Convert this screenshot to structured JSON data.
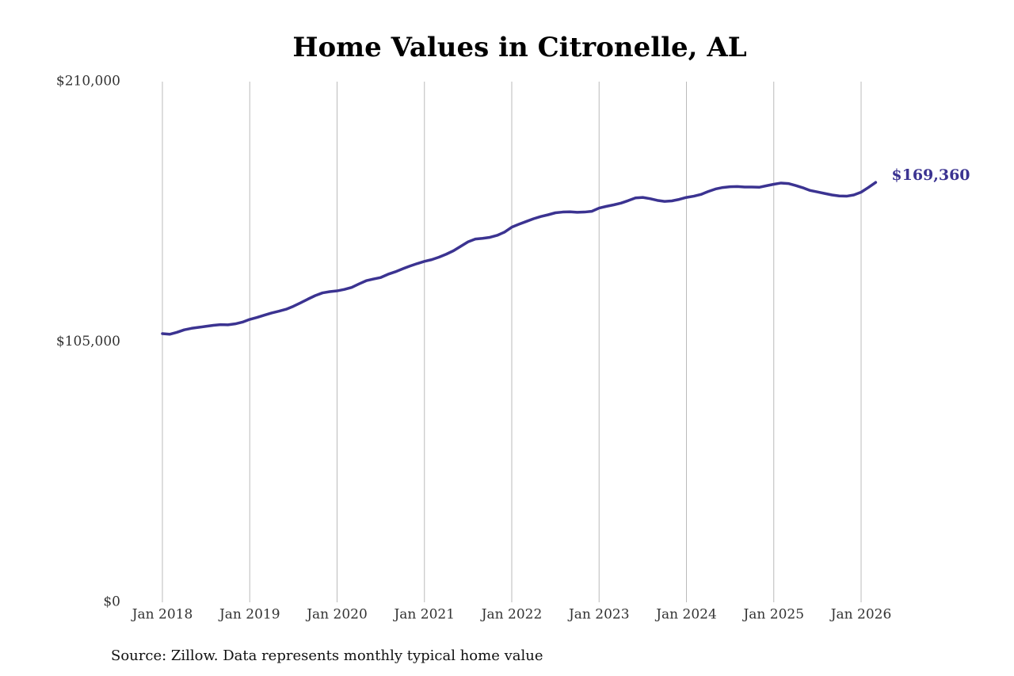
{
  "chart_data": {
    "type": "line",
    "title": "Home Values in Citronelle, AL",
    "source": "Source: Zillow. Data represents monthly typical home value",
    "x": [
      "2018-01",
      "2018-02",
      "2018-03",
      "2018-04",
      "2018-05",
      "2018-06",
      "2018-07",
      "2018-08",
      "2018-09",
      "2018-10",
      "2018-11",
      "2018-12",
      "2019-01",
      "2019-02",
      "2019-03",
      "2019-04",
      "2019-05",
      "2019-06",
      "2019-07",
      "2019-08",
      "2019-09",
      "2019-10",
      "2019-11",
      "2019-12",
      "2020-01",
      "2020-02",
      "2020-03",
      "2020-04",
      "2020-05",
      "2020-06",
      "2020-07",
      "2020-08",
      "2020-09",
      "2020-10",
      "2020-11",
      "2020-12",
      "2021-01",
      "2021-02",
      "2021-03",
      "2021-04",
      "2021-05",
      "2021-06",
      "2021-07",
      "2021-08",
      "2021-09",
      "2021-10",
      "2021-11",
      "2021-12",
      "2022-01",
      "2022-02",
      "2022-03",
      "2022-04",
      "2022-05",
      "2022-06",
      "2022-07",
      "2022-08",
      "2022-09",
      "2022-10",
      "2022-11",
      "2022-12",
      "2023-01",
      "2023-02",
      "2023-03",
      "2023-04",
      "2023-05",
      "2023-06",
      "2023-07",
      "2023-08",
      "2023-09",
      "2023-10",
      "2023-11",
      "2023-12",
      "2024-01",
      "2024-02",
      "2024-03",
      "2024-04",
      "2024-05",
      "2024-06",
      "2024-07",
      "2024-08",
      "2024-09",
      "2024-10",
      "2024-11",
      "2024-12",
      "2025-01",
      "2025-02",
      "2025-03",
      "2025-04",
      "2025-05",
      "2025-06",
      "2025-07",
      "2025-08",
      "2025-09",
      "2025-10",
      "2025-11",
      "2025-12",
      "2026-01",
      "2026-02",
      "2026-03"
    ],
    "series": [
      {
        "name": "Typical home value",
        "color": "#3b3391",
        "values": [
          108350,
          108100,
          108900,
          109900,
          110500,
          110900,
          111300,
          111700,
          112000,
          111900,
          112300,
          113000,
          114100,
          114900,
          115800,
          116700,
          117400,
          118200,
          119400,
          120800,
          122300,
          123700,
          124800,
          125300,
          125600,
          126200,
          127000,
          128400,
          129700,
          130400,
          131000,
          132300,
          133300,
          134500,
          135600,
          136600,
          137500,
          138200,
          139200,
          140400,
          141800,
          143600,
          145400,
          146500,
          146800,
          147200,
          148000,
          149300,
          151300,
          152500,
          153600,
          154700,
          155600,
          156300,
          157100,
          157400,
          157500,
          157300,
          157400,
          157700,
          159000,
          159700,
          160300,
          161000,
          162000,
          163100,
          163300,
          162800,
          162100,
          161700,
          161900,
          162500,
          163300,
          163800,
          164500,
          165700,
          166700,
          167300,
          167600,
          167700,
          167500,
          167500,
          167400,
          168000,
          168600,
          169100,
          168900,
          168100,
          167200,
          166100,
          165500,
          164900,
          164300,
          163900,
          163800,
          164300,
          165400,
          167300,
          169360
        ],
        "value_labels": [
          null,
          null,
          null,
          null,
          null,
          null,
          null,
          null,
          null,
          null,
          null,
          null,
          null,
          null,
          null,
          null,
          null,
          null,
          null,
          null,
          null,
          null,
          null,
          null,
          null,
          null,
          null,
          null,
          null,
          null,
          null,
          null,
          null,
          null,
          null,
          null,
          null,
          null,
          null,
          null,
          null,
          null,
          null,
          null,
          null,
          null,
          null,
          null,
          null,
          null,
          null,
          null,
          null,
          null,
          null,
          null,
          null,
          null,
          null,
          null,
          null,
          null,
          null,
          null,
          null,
          null,
          null,
          null,
          null,
          null,
          null,
          null,
          null,
          null,
          null,
          null,
          null,
          null,
          null,
          null,
          null,
          null,
          null,
          null,
          null,
          null,
          null,
          null,
          null,
          null,
          null,
          null,
          null,
          null,
          null,
          null,
          null,
          null,
          "$169,360"
        ]
      }
    ],
    "xlim": [
      "2018-01",
      "2026-01"
    ],
    "xticks": [
      {
        "value": "2018-01",
        "label": "Jan 2018"
      },
      {
        "value": "2019-01",
        "label": "Jan 2019"
      },
      {
        "value": "2020-01",
        "label": "Jan 2020"
      },
      {
        "value": "2021-01",
        "label": "Jan 2021"
      },
      {
        "value": "2022-01",
        "label": "Jan 2022"
      },
      {
        "value": "2023-01",
        "label": "Jan 2023"
      },
      {
        "value": "2024-01",
        "label": "Jan 2024"
      },
      {
        "value": "2025-01",
        "label": "Jan 2025"
      },
      {
        "value": "2026-01",
        "label": "Jan 2026"
      }
    ],
    "ylim": [
      0,
      210000
    ],
    "yticks": [
      {
        "value": 0,
        "label": "$0"
      },
      {
        "value": 105000,
        "label": "$105,000"
      },
      {
        "value": 210000,
        "label": "$210,000"
      }
    ],
    "grid": "x"
  }
}
